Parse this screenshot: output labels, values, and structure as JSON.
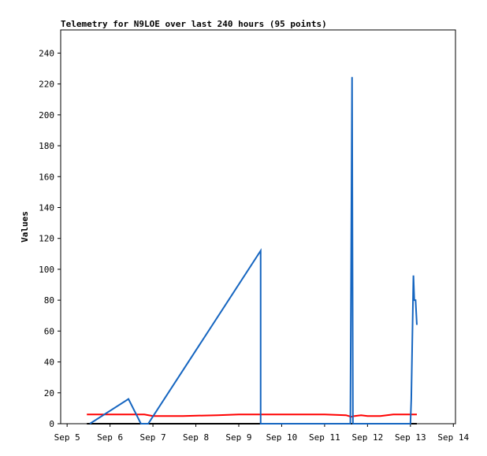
{
  "chart_data": {
    "type": "line",
    "title": "Telemetry for N9LOE over last 240 hours (95 points)",
    "y_label": "Values",
    "xlim": [
      4.85,
      14.05
    ],
    "xticks": [
      {
        "value": 5,
        "label": "Sep 5"
      },
      {
        "value": 6,
        "label": "Sep 6"
      },
      {
        "value": 7,
        "label": "Sep 7"
      },
      {
        "value": 8,
        "label": "Sep 8"
      },
      {
        "value": 9,
        "label": "Sep 9"
      },
      {
        "value": 10,
        "label": "Sep 10"
      },
      {
        "value": 11,
        "label": "Sep 11"
      },
      {
        "value": 12,
        "label": "Sep 12"
      },
      {
        "value": 13,
        "label": "Sep 13"
      },
      {
        "value": 14,
        "label": "Sep 14"
      }
    ],
    "ylim": [
      0,
      255
    ],
    "yticks": [
      0,
      20,
      40,
      60,
      80,
      100,
      120,
      140,
      160,
      180,
      200,
      220,
      240
    ],
    "grid": false,
    "series": [
      {
        "color": "#ff0000",
        "x": [
          5.46,
          6.8,
          7.0,
          7.7,
          8.5,
          9.0,
          10.0,
          11.0,
          11.5,
          11.62,
          11.7,
          11.85,
          12.0,
          12.3,
          12.6,
          13.0,
          13.15
        ],
        "values": [
          6,
          6,
          5,
          5,
          5.5,
          6,
          6,
          6,
          5.5,
          4.5,
          5,
          5.5,
          5,
          5,
          6,
          6,
          6
        ]
      },
      {
        "color": "#000000",
        "x": [
          5.46,
          13.15
        ],
        "values": [
          0,
          0
        ]
      },
      {
        "color": "#1565c0",
        "x": [
          5.53,
          6.43,
          6.72,
          6.89,
          9.51,
          9.51,
          11.6,
          11.62,
          11.64,
          11.66,
          13.0,
          13.02,
          13.04,
          13.07,
          13.09,
          13.12,
          13.15
        ],
        "values": [
          0,
          16,
          0,
          0,
          112,
          0,
          0,
          112,
          224.5,
          0,
          0,
          16,
          48,
          96,
          80,
          80,
          64
        ]
      }
    ]
  }
}
